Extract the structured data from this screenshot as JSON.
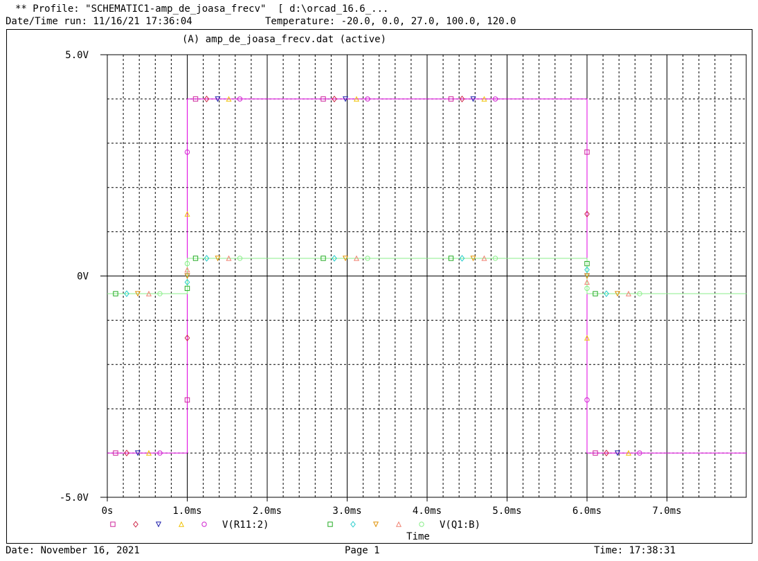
{
  "header": {
    "profile_line": "** Profile: \"SCHEMATIC1-amp_de_joasa_frecv\"  [ d:\\orcad_16.6_...",
    "run_line": "Date/Time run: 11/16/21 17:36:04",
    "temperature_line": "Temperature: -20.0, 0.0, 27.0, 100.0, 120.0"
  },
  "plot": {
    "section_title": "(A) amp_de_joasa_frecv.dat (active)"
  },
  "footer": {
    "date": "Date: November 16, 2021",
    "page": "Page 1",
    "time": "Time: 17:38:31"
  },
  "colors": {
    "bg": "#ffffff",
    "grid": "#000000",
    "r11_trace": "#e000e0",
    "q1b_trace": "#88ee88",
    "marker_square_pink": "#cc2299",
    "marker_diamond_red": "#cc2244",
    "marker_triangle_blue": "#1a1aaa",
    "marker_triangle_yellow": "#f0c000",
    "marker_circle_magenta": "#d020d0",
    "marker_square_green": "#22aa22",
    "marker_diamond_cyan": "#22cccc",
    "marker_triangle_orange": "#e09000",
    "marker_triangle_salmon": "#f08070",
    "marker_circle_lightgreen": "#88ee88"
  },
  "chart_data": {
    "type": "line",
    "xlabel": "Time",
    "ylabel": "",
    "xlim": [
      0,
      8.0
    ],
    "ylim": [
      -5.0,
      5.0
    ],
    "x_units": "ms",
    "grid": true,
    "x_ticks": [
      {
        "v": 0,
        "label": "0s"
      },
      {
        "v": 1.0,
        "label": "1.0ms"
      },
      {
        "v": 2.0,
        "label": "2.0ms"
      },
      {
        "v": 3.0,
        "label": "3.0ms"
      },
      {
        "v": 4.0,
        "label": "4.0ms"
      },
      {
        "v": 5.0,
        "label": "5.0ms"
      },
      {
        "v": 6.0,
        "label": "6.0ms"
      },
      {
        "v": 7.0,
        "label": "7.0ms"
      }
    ],
    "y_ticks": [
      {
        "v": 5.0,
        "label": "5.0V"
      },
      {
        "v": 0,
        "label": "0V"
      },
      {
        "v": -5.0,
        "label": "-5.0V"
      }
    ],
    "series": [
      {
        "name": "V(R11:2)",
        "color": "#e000e0",
        "markers": [
          "square",
          "diamond",
          "triangle-down",
          "triangle-up",
          "circle"
        ],
        "marker_colors": [
          "#cc2299",
          "#cc2244",
          "#1a1aaa",
          "#f0c000",
          "#d020d0"
        ],
        "x": [
          0,
          1.0,
          1.0,
          6.0,
          6.0,
          8.0
        ],
        "y": [
          -4.0,
          -4.0,
          4.0,
          4.0,
          -4.0,
          -4.0
        ]
      },
      {
        "name": "V(Q1:B)",
        "color": "#88ee88",
        "markers": [
          "square",
          "diamond",
          "triangle-down",
          "triangle-up",
          "circle"
        ],
        "marker_colors": [
          "#22aa22",
          "#22cccc",
          "#e09000",
          "#f08070",
          "#88ee88"
        ],
        "x": [
          0,
          1.0,
          1.0,
          6.0,
          6.0,
          8.0
        ],
        "y": [
          -0.4,
          -0.4,
          0.4,
          0.4,
          -0.4,
          -0.4
        ]
      }
    ]
  }
}
